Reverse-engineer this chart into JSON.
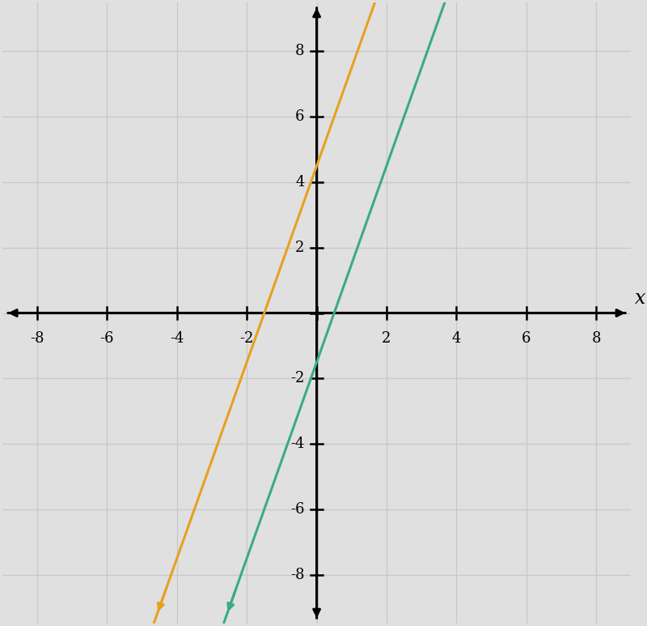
{
  "orange_line": {
    "slope": 3.0,
    "y_intercept": 4.5,
    "color": "#E8A020",
    "linewidth": 2.2
  },
  "green_line": {
    "slope": 3.0,
    "y_intercept": -1.5,
    "color": "#3AAA8A",
    "linewidth": 2.2
  },
  "x_range": [
    -9.5,
    9.5
  ],
  "y_range": [
    -10.5,
    10.5
  ],
  "plot_xlim": [
    -9,
    9
  ],
  "plot_ylim": [
    -9.5,
    9.5
  ],
  "axis_label_x": "x",
  "tick_interval": 2,
  "grid_color": "#C8C8C8",
  "background_color": "#E0E0E0",
  "figsize": [
    8.0,
    7.73
  ]
}
